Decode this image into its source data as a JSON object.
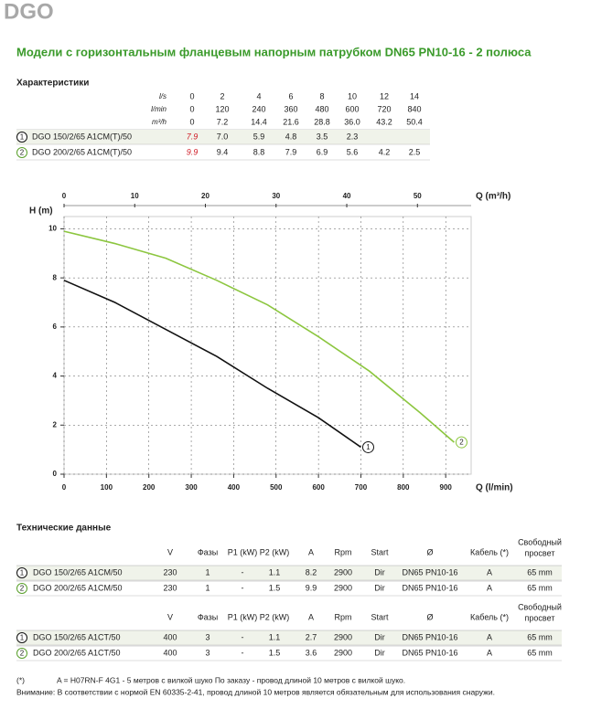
{
  "header": {
    "title": "DGO",
    "subtitle": "Модели с горизонтальным фланцевым напорным патрубком DN65 PN10-16 - 2 полюса"
  },
  "characteristics": {
    "title": "Характеристики",
    "header_rows": [
      {
        "unit": "l/s",
        "values": [
          "0",
          "2",
          "4",
          "6",
          "8",
          "10",
          "12",
          "14"
        ]
      },
      {
        "unit": "l/min",
        "values": [
          "0",
          "120",
          "240",
          "360",
          "480",
          "600",
          "720",
          "840"
        ]
      },
      {
        "unit": "m³/h",
        "values": [
          "0",
          "7.2",
          "14.4",
          "21.6",
          "28.8",
          "36.0",
          "43.2",
          "50.4"
        ]
      }
    ],
    "rows": [
      {
        "num": "1",
        "name": "DGO 150/2/65 A1CM(T)/50",
        "values": [
          "7.9",
          "7.0",
          "5.9",
          "4.8",
          "3.5",
          "2.3"
        ]
      },
      {
        "num": "2",
        "name": "DGO 200/2/65 A1CM(T)/50",
        "values": [
          "9.9",
          "9.4",
          "8.8",
          "7.9",
          "6.9",
          "5.6",
          "4.2",
          "2.5"
        ]
      }
    ]
  },
  "chart_data": {
    "type": "line",
    "x_label": "Q (l/min)",
    "x2_label": "Q (m³/h)",
    "y_label": "H (m)",
    "xlim": [
      0,
      960
    ],
    "xticks": [
      0,
      100,
      200,
      300,
      400,
      500,
      600,
      700,
      800,
      900
    ],
    "x2lim": [
      0,
      57.6
    ],
    "x2ticks": [
      0,
      10,
      20,
      30,
      40,
      50
    ],
    "ylim": [
      0,
      10.5
    ],
    "yticks": [
      0,
      2,
      4,
      6,
      8,
      10
    ],
    "grid": true,
    "series": [
      {
        "name": "1",
        "color": "#111111",
        "x": [
          0,
          120,
          240,
          360,
          480,
          600,
          700
        ],
        "values": [
          7.9,
          7.0,
          5.9,
          4.8,
          3.5,
          2.3,
          1.1
        ]
      },
      {
        "name": "2",
        "color": "#8cc63f",
        "x": [
          0,
          120,
          240,
          360,
          480,
          600,
          720,
          840,
          920
        ],
        "values": [
          9.9,
          9.4,
          8.8,
          7.9,
          6.9,
          5.6,
          4.2,
          2.5,
          1.3
        ]
      }
    ]
  },
  "technical": {
    "title": "Технические данные",
    "tables": [
      {
        "header": [
          "V",
          "Фазы",
          "P1 (kW)",
          "P2 (kW)",
          "A",
          "Rpm",
          "Start",
          "Ø",
          "Кабель (*)",
          [
            "Свободный",
            "просвет"
          ]
        ],
        "rows": [
          {
            "num": "1",
            "name": "DGO 150/2/65 A1CM/50",
            "values": [
              "230",
              "1",
              "-",
              "1.1",
              "8.2",
              "2900",
              "Dir",
              "DN65 PN10-16",
              "A",
              "65 mm"
            ]
          },
          {
            "num": "2",
            "name": "DGO 200/2/65 A1CM/50",
            "values": [
              "230",
              "1",
              "-",
              "1.5",
              "9.9",
              "2900",
              "Dir",
              "DN65 PN10-16",
              "A",
              "65 mm"
            ]
          }
        ]
      },
      {
        "header": [
          "V",
          "Фазы",
          "P1 (kW)",
          "P2 (kW)",
          "A",
          "Rpm",
          "Start",
          "Ø",
          "Кабель (*)",
          [
            "Свободный",
            "просвет"
          ]
        ],
        "rows": [
          {
            "num": "1",
            "name": "DGO 150/2/65 A1CT/50",
            "values": [
              "400",
              "3",
              "-",
              "1.1",
              "2.7",
              "2900",
              "Dir",
              "DN65 PN10-16",
              "A",
              "65 mm"
            ]
          },
          {
            "num": "2",
            "name": "DGO 200/2/65 A1CT/50",
            "values": [
              "400",
              "3",
              "-",
              "1.5",
              "3.6",
              "2900",
              "Dir",
              "DN65 PN10-16",
              "A",
              "65 mm"
            ]
          }
        ]
      }
    ]
  },
  "notes": {
    "mark": "(*)",
    "cable": "A = H07RN-F 4G1 - 5 метров с вилкой шуко По заказу - провод длиной 10 метров с вилкой шуко.",
    "warning": "Внимание: В соответствии с нормой EN 60335-2-41, провод длиной 10 метров является обязательным для использования снаружи."
  }
}
